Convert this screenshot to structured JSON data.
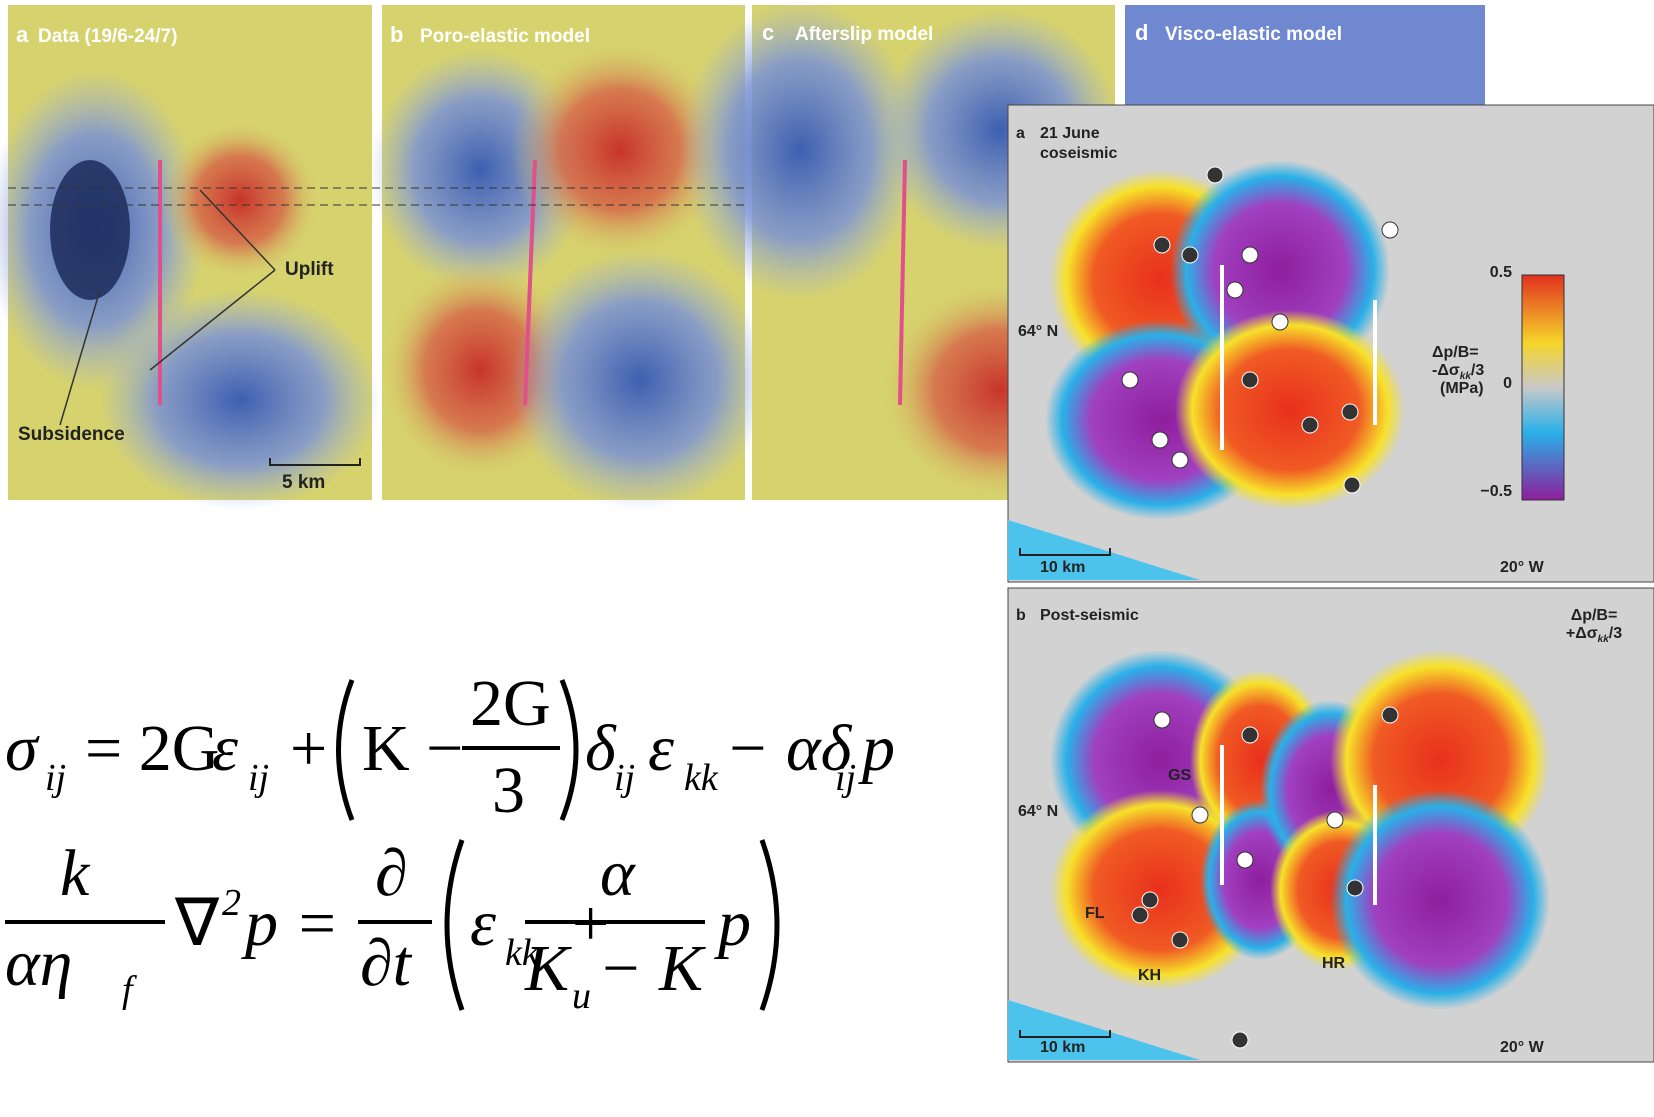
{
  "panels": [
    {
      "letter": "a",
      "title": "Data (19/6-24/7)"
    },
    {
      "letter": "b",
      "title": "Poro-elastic model"
    },
    {
      "letter": "c",
      "title": "Afterslip model"
    },
    {
      "letter": "d",
      "title": "Visco-elastic model"
    }
  ],
  "annotations": {
    "uplift": "Uplift",
    "subsidence": "Subsidence",
    "scale": "5 km"
  },
  "maps": [
    {
      "letter": "a",
      "title_line1": "21 June",
      "title_line2": "coseismic",
      "latitude": "64° N",
      "longitude": "20° W",
      "scale": "10 km",
      "formula_line1": "Δp/B=",
      "formula_line2_prefix": "-Δσ",
      "formula_line2_sub": "kk",
      "formula_line2_suffix": "/3",
      "unit": "(MPa)",
      "colorbar_ticks": [
        "0.5",
        "0",
        "−0.5"
      ]
    },
    {
      "letter": "b",
      "title_line1": "Post-seismic",
      "latitude": "64° N",
      "longitude": "20° W",
      "scale": "10 km",
      "formula_line1": "Δp/B=",
      "formula_line2_prefix": "+Δσ",
      "formula_line2_sub": "kk",
      "formula_line2_suffix": "/3",
      "sites": [
        "GS",
        "FL",
        "KH",
        "HR"
      ]
    }
  ],
  "equation_1": [
    "σ",
    "ij",
    "= 2G",
    "ε",
    "ij",
    "+",
    "K −",
    "2G",
    "3",
    "δ",
    "ij",
    "ε",
    "kk",
    "− αδ",
    "ij",
    "p"
  ],
  "equation_2": [
    "k",
    "αη",
    "f",
    "∇",
    "2",
    "p =",
    "∂",
    "∂t",
    "ε",
    "kk",
    "+",
    "α",
    "K",
    "u",
    "− K",
    "p"
  ]
}
